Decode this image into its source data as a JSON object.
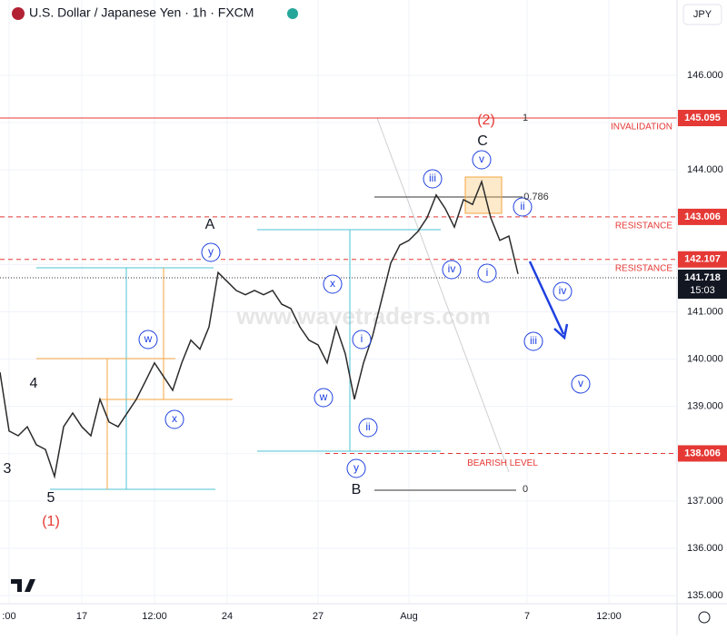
{
  "chart_data": {
    "type": "line",
    "title": "U.S. Dollar / Japanese Yen · 1h · FXCM",
    "currency": "JPY",
    "watermark": "www.wavetraders.com",
    "color": "#2b2b2b",
    "ylim": [
      134.83,
      147.59
    ],
    "yticks": [
      {
        "value": 135,
        "label": "135.000"
      },
      {
        "value": 136,
        "label": "136.000"
      },
      {
        "value": 137,
        "label": "137.000"
      },
      {
        "value": 138,
        "label": "138.000"
      },
      {
        "value": 139,
        "label": "139.000"
      },
      {
        "value": 140,
        "label": "140.000"
      },
      {
        "value": 141,
        "label": "141.000"
      },
      {
        "value": 142,
        "label": "142.000"
      },
      {
        "value": 143,
        "label": "143.000"
      },
      {
        "value": 144,
        "label": "144.000"
      },
      {
        "value": 145,
        "label": "145.000"
      },
      {
        "value": 146,
        "label": "146.000"
      }
    ],
    "categories": [
      null,
      ":00",
      null,
      null,
      null,
      null,
      null,
      null,
      null,
      "17",
      null,
      null,
      null,
      null,
      null,
      null,
      null,
      "12:00",
      null,
      null,
      null,
      null,
      null,
      null,
      null,
      "24",
      null,
      null,
      null,
      null,
      null,
      null,
      null,
      null,
      null,
      "27",
      null,
      null,
      null,
      null,
      null,
      null,
      null,
      null,
      null,
      "Aug",
      null,
      null,
      null,
      null,
      null,
      null,
      null,
      null,
      null,
      null,
      null,
      null,
      "7",
      null,
      null,
      null,
      null,
      null,
      null,
      null,
      null,
      "12:00",
      null,
      null,
      null,
      null,
      null,
      null,
      null
    ],
    "values": [
      139.72,
      138.48,
      138.38,
      138.57,
      138.19,
      138.09,
      137.52,
      138.57,
      138.86,
      138.57,
      138.38,
      139.15,
      138.67,
      138.57,
      138.86,
      139.15,
      139.53,
      139.92,
      139.63,
      139.34,
      139.92,
      140.4,
      140.21,
      140.68,
      141.83,
      141.64,
      141.45,
      141.36,
      141.45,
      141.36,
      141.45,
      141.16,
      141.07,
      140.68,
      140.4,
      140.3,
      139.92,
      140.68,
      140.11,
      139.15,
      139.92,
      140.49,
      141.26,
      142.03,
      142.41,
      142.51,
      142.7,
      142.99,
      143.47,
      143.18,
      142.79,
      143.37,
      143.27,
      143.75,
      142.99,
      142.51,
      142.6,
      141.8,
      null,
      null,
      null,
      null,
      null,
      null,
      null,
      null,
      null,
      null,
      null,
      null,
      null,
      null,
      null,
      null,
      null
    ],
    "levels": [
      {
        "value": 145.095,
        "name": "INVALIDATION",
        "color": "#e53935"
      },
      {
        "value": 143.006,
        "name": "RESISTANCE",
        "color": "#e53935"
      },
      {
        "value": 142.107,
        "name": "RESISTANCE",
        "color": "#e53935"
      },
      {
        "value": 138.006,
        "name": "BEARISH LEVEL",
        "color": "#e53935"
      }
    ],
    "last_price": {
      "value": 141.718,
      "time": "15:03"
    },
    "fib_labels": [
      "1",
      "0.786",
      "0"
    ],
    "wave_labels": [
      "y",
      "w",
      "x",
      "x",
      "w",
      "y",
      "i",
      "ii",
      "iii",
      "iv",
      "v",
      "i",
      "ii",
      "iv",
      "iii",
      "v"
    ],
    "structure_labels": [
      "A",
      "C",
      "B",
      "3",
      "4",
      "5"
    ],
    "degree_labels": [
      "(1)",
      "(2)"
    ]
  }
}
